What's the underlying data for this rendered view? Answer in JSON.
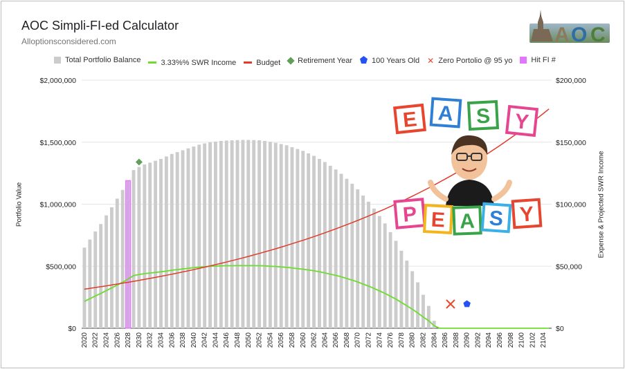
{
  "header": {
    "title": "AOC Simpli-FI-ed Calculator",
    "subtitle": "Alloptionsconsidered.com"
  },
  "colors": {
    "bars": "#cccccc",
    "swr": "#6ddc2f",
    "budget": "#e03a2a",
    "retire": "#62a05a",
    "hundred": "#2552f2",
    "zero": "#e8492a",
    "hitfi": "#e376ff"
  },
  "legend": [
    {
      "key": "bars",
      "label": "Total Portfolio Balance",
      "shape": "box"
    },
    {
      "key": "swr",
      "label": "3.33%% SWR Income",
      "shape": "line"
    },
    {
      "key": "budget",
      "label": "Budget",
      "shape": "line"
    },
    {
      "key": "retire",
      "label": "Retirement Year",
      "shape": "diamond"
    },
    {
      "key": "hundred",
      "label": "100 Years Old",
      "shape": "pentagon"
    },
    {
      "key": "zero",
      "label": "Zero Portolio @ 95 yo",
      "shape": "x"
    },
    {
      "key": "hitfi",
      "label": "Hit FI #",
      "shape": "box"
    }
  ],
  "logo_icon": "aoc-castle-logo",
  "sticker_icon": "easy-peasy-sticker",
  "chart_data": {
    "type": "bar",
    "x_start": 2020,
    "x_end": 2105,
    "x_tick_labels": [
      "2020",
      "2022",
      "2024",
      "2026",
      "2028",
      "2030",
      "2032",
      "2034",
      "2036",
      "2038",
      "2040",
      "2042",
      "2044",
      "2046",
      "2048",
      "2050",
      "2052",
      "2054",
      "2056",
      "2058",
      "2060",
      "2062",
      "2064",
      "2066",
      "2068",
      "2070",
      "2072",
      "2074",
      "2076",
      "2078",
      "2080",
      "2082",
      "2084",
      "2086",
      "2088",
      "2090",
      "2092",
      "2094",
      "2096",
      "2098",
      "2100",
      "2102",
      "2104"
    ],
    "y_left": {
      "title": "Portfolio Value",
      "min": 0,
      "max": 2000000,
      "ticks": [
        0,
        500000,
        1000000,
        1500000,
        2000000
      ],
      "labels": [
        "$0",
        "$500,000",
        "$1,000,000",
        "$1,500,000",
        "$2,000,000"
      ]
    },
    "y_right": {
      "title": "Expense & Projected SWR Income",
      "min": 0,
      "max": 200000,
      "ticks": [
        0,
        50000,
        100000,
        150000,
        200000
      ],
      "labels": [
        "$0",
        "$50,000",
        "$100,000",
        "$150,000",
        "$200,000"
      ]
    },
    "series": [
      {
        "name": "Total Portfolio Balance",
        "axis": "left",
        "type": "bar",
        "values": [
          650000,
          715000,
          780000,
          840000,
          910000,
          975000,
          1045000,
          1115000,
          1190000,
          1275000,
          1300000,
          1320000,
          1335000,
          1350000,
          1365000,
          1385000,
          1405000,
          1420000,
          1435000,
          1450000,
          1465000,
          1480000,
          1490000,
          1500000,
          1505000,
          1510000,
          1513000,
          1515000,
          1517000,
          1518000,
          1518000,
          1517000,
          1515000,
          1510000,
          1503000,
          1495000,
          1485000,
          1475000,
          1460000,
          1445000,
          1430000,
          1410000,
          1390000,
          1365000,
          1340000,
          1310000,
          1280000,
          1245000,
          1205000,
          1165000,
          1120000,
          1070000,
          1020000,
          965000,
          905000,
          845000,
          775000,
          705000,
          625000,
          545000,
          460000,
          370000,
          270000,
          180000,
          60000,
          0,
          0,
          0,
          0,
          0,
          0,
          0,
          0,
          0,
          0,
          0,
          0,
          0,
          0,
          0,
          0,
          0,
          0,
          0,
          0,
          0
        ]
      },
      {
        "name": "3.33%% SWR Income",
        "axis": "right",
        "type": "line",
        "values": [
          21600,
          23800,
          26000,
          28000,
          30300,
          32500,
          34800,
          37100,
          39600,
          42500,
          43300,
          44000,
          44500,
          45000,
          45500,
          46100,
          46800,
          47300,
          47800,
          48300,
          48800,
          49300,
          49600,
          50000,
          50100,
          50300,
          50400,
          50400,
          50500,
          50500,
          50500,
          50500,
          50400,
          50300,
          50000,
          49800,
          49400,
          49100,
          48600,
          48100,
          47600,
          47000,
          46300,
          45500,
          44600,
          43600,
          42600,
          41500,
          40100,
          38800,
          37300,
          35600,
          34000,
          32100,
          30100,
          28100,
          25800,
          23500,
          20800,
          18100,
          15300,
          12300,
          9000,
          6000,
          2000,
          0,
          0,
          0,
          0,
          0,
          0,
          0,
          0,
          0,
          0,
          0,
          0,
          0,
          0,
          0,
          0,
          0,
          0,
          0,
          0,
          0
        ]
      },
      {
        "name": "Budget",
        "axis": "right",
        "type": "line",
        "start": 31500,
        "growth": 0.0205
      }
    ],
    "markers": [
      {
        "name": "Retirement Year",
        "key": "retire",
        "shape": "diamond",
        "year": 2030,
        "value": 134000,
        "axis": "right"
      },
      {
        "name": "Zero Portolio @ 95 yo",
        "key": "zero",
        "shape": "x",
        "year": 2087,
        "value": 19500,
        "axis": "right"
      },
      {
        "name": "100 Years Old",
        "key": "hundred",
        "shape": "pentagon",
        "year": 2090,
        "value": 19500,
        "axis": "right"
      }
    ],
    "hit_fi": {
      "name": "Hit FI #",
      "year": 2028,
      "value": 1190000
    },
    "grid": true,
    "legend_position": "top"
  }
}
